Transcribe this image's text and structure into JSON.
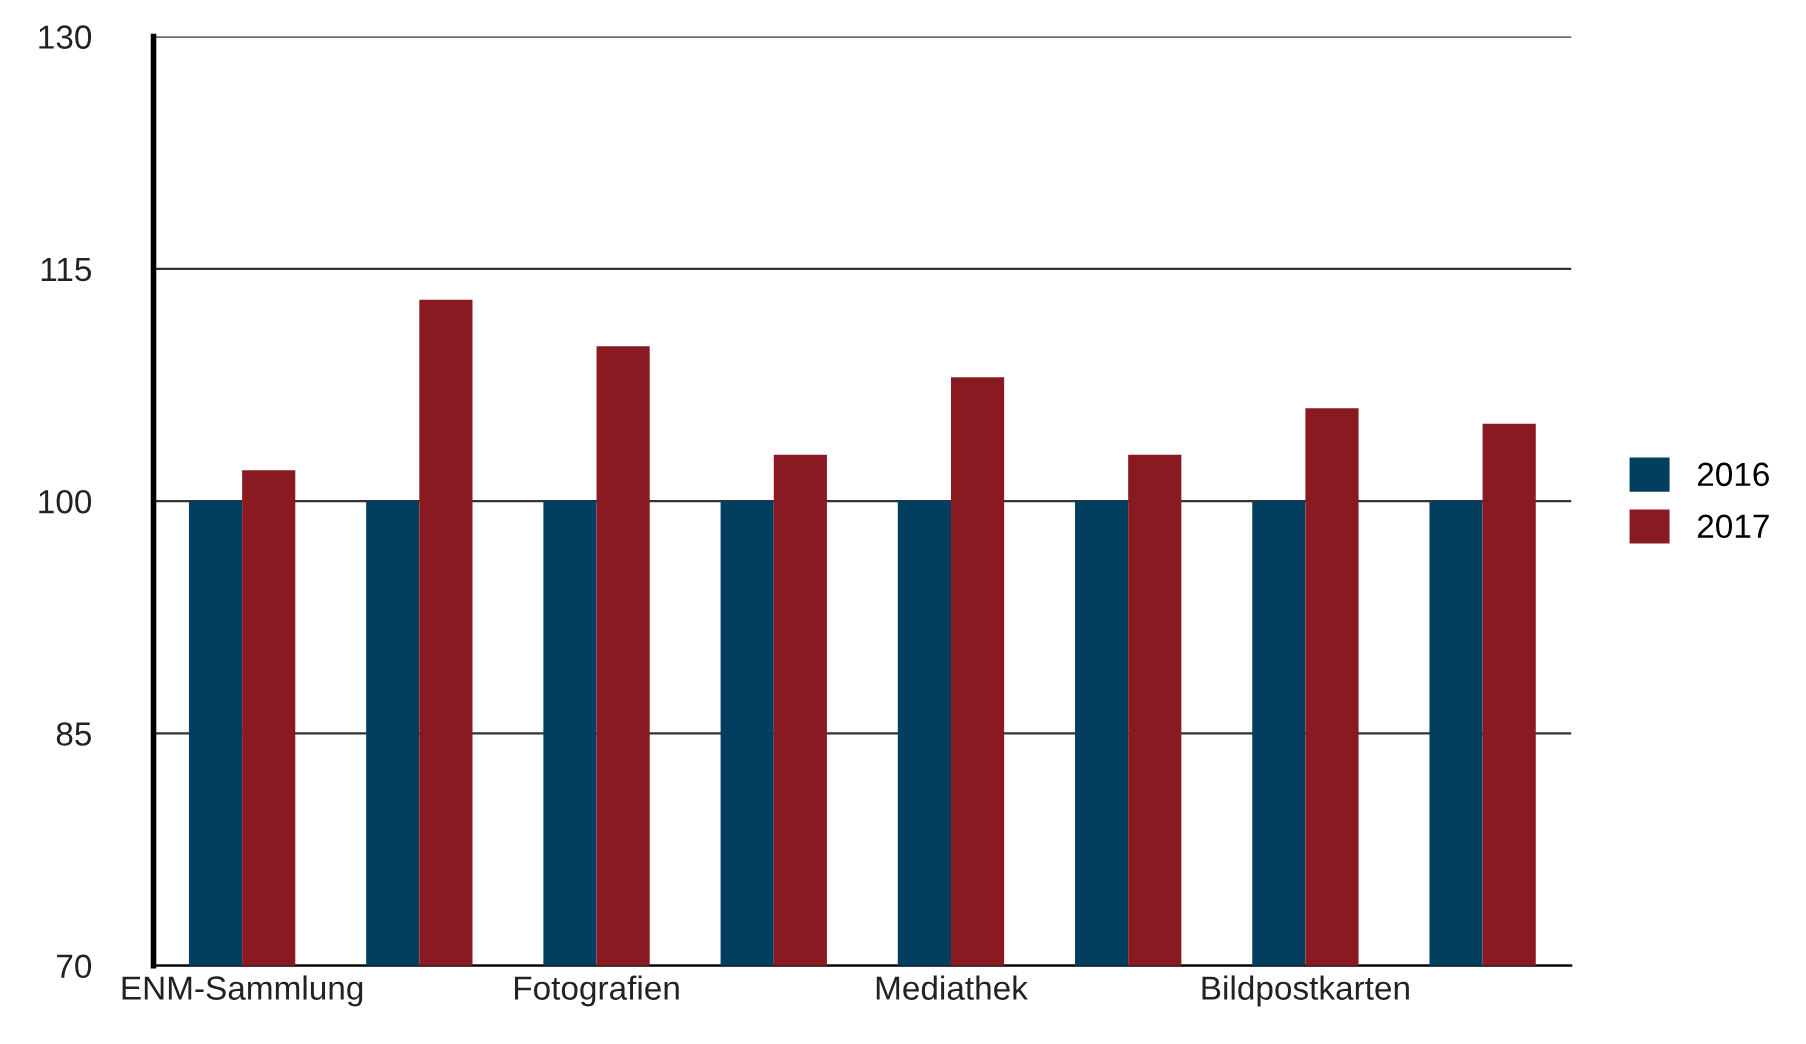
{
  "chart_data": {
    "type": "bar",
    "categories": [
      "ENM-Sammlung",
      null,
      "Fotografien",
      null,
      "Mediathek",
      null,
      "Bildpostkarten",
      null
    ],
    "series": [
      {
        "name": "2016",
        "color": "#023f5f",
        "values": [
          100,
          100,
          100,
          100,
          100,
          100,
          100,
          100
        ]
      },
      {
        "name": "2017",
        "color": "#8a1a22",
        "values": [
          102,
          113,
          110,
          103,
          108,
          103,
          106,
          105
        ]
      }
    ],
    "ylim": [
      70,
      130
    ],
    "yticks": [
      70,
      85,
      100,
      115,
      130
    ],
    "grid": "y",
    "legend": "right"
  }
}
